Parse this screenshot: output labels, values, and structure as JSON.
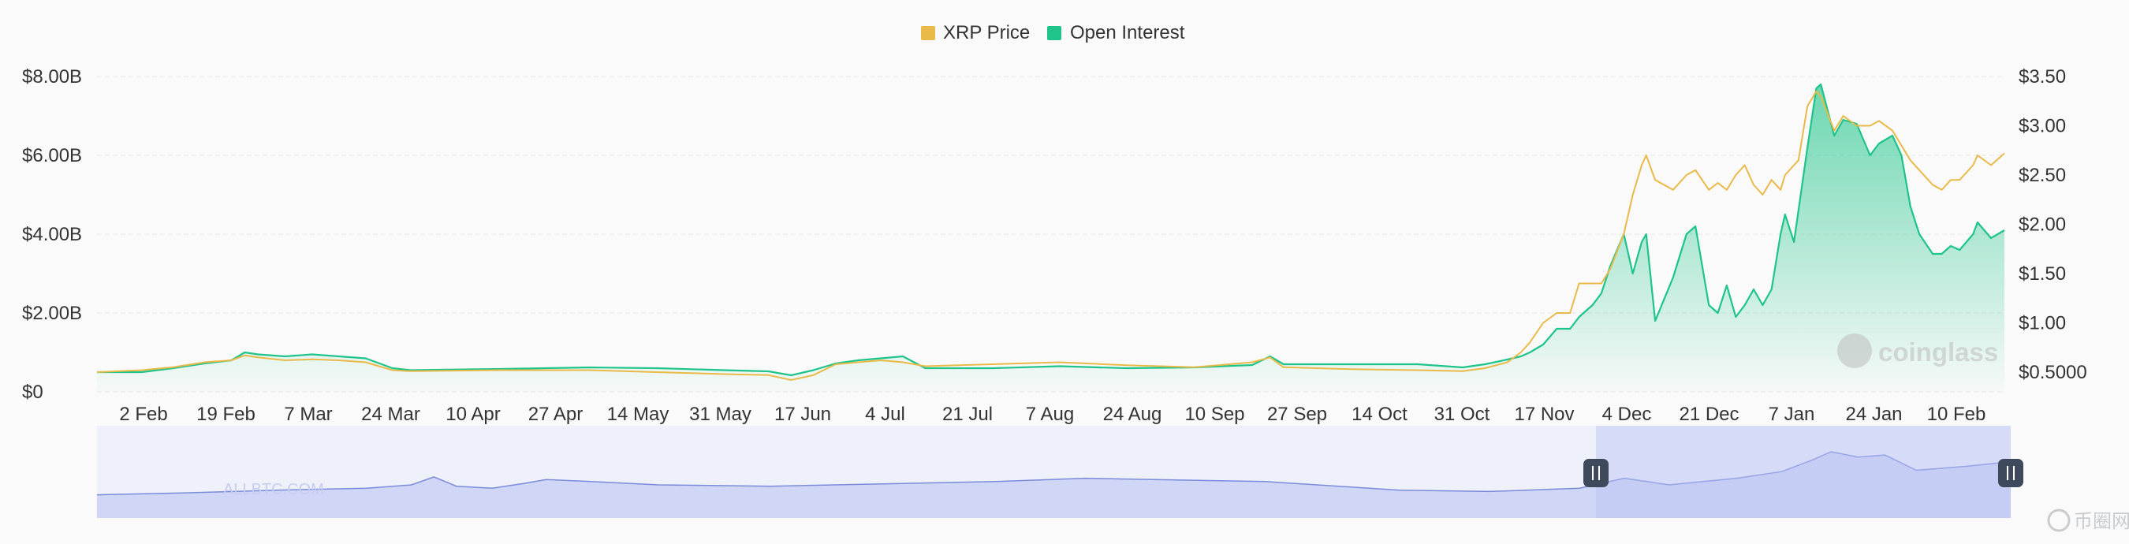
{
  "chart_data": {
    "type": "line",
    "legend": {
      "position": "top-center",
      "items": [
        {
          "name": "XRP Price",
          "color": "#e9b949"
        },
        {
          "name": "Open Interest",
          "color": "#1ec48a"
        }
      ]
    },
    "x_tick_labels": [
      "2 Feb",
      "19 Feb",
      "7 Mar",
      "24 Mar",
      "10 Apr",
      "27 Apr",
      "14 May",
      "31 May",
      "17 Jun",
      "4 Jul",
      "21 Jul",
      "7 Aug",
      "24 Aug",
      "10 Sep",
      "27 Sep",
      "14 Oct",
      "31 Oct",
      "17 Nov",
      "4 Dec",
      "21 Dec",
      "7 Jan",
      "24 Jan",
      "10 Feb"
    ],
    "left_axis": {
      "ticks": [
        "$0",
        "$2.00B",
        "$4.00B",
        "$6.00B",
        "$8.00B"
      ],
      "range": [
        0,
        8.0
      ],
      "unit": "B USD"
    },
    "right_axis": {
      "ticks": [
        "$0.5000",
        "$1.00",
        "$1.50",
        "$2.00",
        "$2.50",
        "$3.00",
        "$3.50"
      ],
      "range": [
        0.3,
        3.5
      ],
      "unit": "USD"
    },
    "grid": true,
    "series": [
      {
        "name": "Open Interest",
        "axis": "left",
        "color": "#1ec48a",
        "fill": "area",
        "points": [
          [
            0,
            0.5
          ],
          [
            10,
            0.5
          ],
          [
            17,
            0.6
          ],
          [
            24,
            0.72
          ],
          [
            30,
            0.8
          ],
          [
            33,
            1.0
          ],
          [
            36,
            0.95
          ],
          [
            42,
            0.9
          ],
          [
            48,
            0.95
          ],
          [
            54,
            0.9
          ],
          [
            60,
            0.85
          ],
          [
            66,
            0.6
          ],
          [
            70,
            0.55
          ],
          [
            90,
            0.58
          ],
          [
            110,
            0.62
          ],
          [
            125,
            0.6
          ],
          [
            140,
            0.55
          ],
          [
            150,
            0.52
          ],
          [
            155,
            0.42
          ],
          [
            160,
            0.55
          ],
          [
            165,
            0.72
          ],
          [
            170,
            0.8
          ],
          [
            175,
            0.85
          ],
          [
            180,
            0.9
          ],
          [
            185,
            0.6
          ],
          [
            200,
            0.6
          ],
          [
            215,
            0.65
          ],
          [
            230,
            0.6
          ],
          [
            245,
            0.62
          ],
          [
            258,
            0.68
          ],
          [
            262,
            0.9
          ],
          [
            265,
            0.7
          ],
          [
            280,
            0.7
          ],
          [
            295,
            0.7
          ],
          [
            305,
            0.62
          ],
          [
            310,
            0.7
          ],
          [
            315,
            0.82
          ],
          [
            318,
            0.9
          ],
          [
            320,
            1.0
          ],
          [
            323,
            1.2
          ],
          [
            326,
            1.6
          ],
          [
            329,
            1.6
          ],
          [
            331,
            1.9
          ],
          [
            334,
            2.2
          ],
          [
            336,
            2.5
          ],
          [
            338,
            3.2
          ],
          [
            341,
            4.0
          ],
          [
            343,
            3.0
          ],
          [
            345,
            3.8
          ],
          [
            346,
            4.0
          ],
          [
            348,
            1.8
          ],
          [
            352,
            2.9
          ],
          [
            355,
            4.0
          ],
          [
            357,
            4.2
          ],
          [
            360,
            2.2
          ],
          [
            362,
            2.0
          ],
          [
            364,
            2.7
          ],
          [
            366,
            1.9
          ],
          [
            368,
            2.2
          ],
          [
            370,
            2.6
          ],
          [
            372,
            2.2
          ],
          [
            374,
            2.6
          ],
          [
            376,
            4.0
          ],
          [
            377,
            4.5
          ],
          [
            379,
            3.8
          ],
          [
            380,
            4.6
          ],
          [
            382,
            6.2
          ],
          [
            384,
            7.7
          ],
          [
            385,
            7.8
          ],
          [
            388,
            6.5
          ],
          [
            390,
            6.9
          ],
          [
            393,
            6.8
          ],
          [
            396,
            6.0
          ],
          [
            398,
            6.3
          ],
          [
            401,
            6.5
          ],
          [
            403,
            6.0
          ],
          [
            405,
            4.7
          ],
          [
            407,
            4.0
          ],
          [
            410,
            3.5
          ],
          [
            412,
            3.5
          ],
          [
            414,
            3.7
          ],
          [
            416,
            3.6
          ],
          [
            419,
            4.0
          ],
          [
            420,
            4.3
          ],
          [
            423,
            3.9
          ],
          [
            426,
            4.1
          ]
        ]
      },
      {
        "name": "XRP Price",
        "axis": "right",
        "color": "#e9b949",
        "fill": "none",
        "points": [
          [
            0,
            0.5
          ],
          [
            10,
            0.52
          ],
          [
            17,
            0.55
          ],
          [
            24,
            0.6
          ],
          [
            30,
            0.62
          ],
          [
            33,
            0.67
          ],
          [
            36,
            0.65
          ],
          [
            42,
            0.62
          ],
          [
            48,
            0.63
          ],
          [
            54,
            0.62
          ],
          [
            60,
            0.6
          ],
          [
            66,
            0.52
          ],
          [
            70,
            0.51
          ],
          [
            90,
            0.52
          ],
          [
            110,
            0.52
          ],
          [
            125,
            0.5
          ],
          [
            140,
            0.48
          ],
          [
            150,
            0.47
          ],
          [
            155,
            0.42
          ],
          [
            160,
            0.47
          ],
          [
            165,
            0.58
          ],
          [
            170,
            0.6
          ],
          [
            175,
            0.62
          ],
          [
            180,
            0.6
          ],
          [
            185,
            0.56
          ],
          [
            200,
            0.58
          ],
          [
            215,
            0.6
          ],
          [
            230,
            0.57
          ],
          [
            245,
            0.55
          ],
          [
            258,
            0.6
          ],
          [
            262,
            0.65
          ],
          [
            265,
            0.55
          ],
          [
            280,
            0.53
          ],
          [
            295,
            0.52
          ],
          [
            305,
            0.51
          ],
          [
            310,
            0.54
          ],
          [
            315,
            0.6
          ],
          [
            318,
            0.7
          ],
          [
            320,
            0.8
          ],
          [
            323,
            1.0
          ],
          [
            326,
            1.1
          ],
          [
            329,
            1.1
          ],
          [
            331,
            1.4
          ],
          [
            334,
            1.4
          ],
          [
            336,
            1.4
          ],
          [
            338,
            1.55
          ],
          [
            341,
            1.9
          ],
          [
            343,
            2.3
          ],
          [
            345,
            2.6
          ],
          [
            346,
            2.7
          ],
          [
            348,
            2.45
          ],
          [
            352,
            2.35
          ],
          [
            355,
            2.5
          ],
          [
            357,
            2.55
          ],
          [
            360,
            2.35
          ],
          [
            362,
            2.42
          ],
          [
            364,
            2.35
          ],
          [
            366,
            2.5
          ],
          [
            368,
            2.6
          ],
          [
            370,
            2.4
          ],
          [
            372,
            2.3
          ],
          [
            374,
            2.45
          ],
          [
            376,
            2.35
          ],
          [
            377,
            2.5
          ],
          [
            379,
            2.6
          ],
          [
            380,
            2.65
          ],
          [
            382,
            3.2
          ],
          [
            384,
            3.35
          ],
          [
            385,
            3.3
          ],
          [
            388,
            2.95
          ],
          [
            390,
            3.1
          ],
          [
            393,
            3.0
          ],
          [
            396,
            3.0
          ],
          [
            398,
            3.05
          ],
          [
            401,
            2.95
          ],
          [
            403,
            2.8
          ],
          [
            405,
            2.65
          ],
          [
            407,
            2.55
          ],
          [
            410,
            2.4
          ],
          [
            412,
            2.35
          ],
          [
            414,
            2.45
          ],
          [
            416,
            2.45
          ],
          [
            419,
            2.6
          ],
          [
            420,
            2.7
          ],
          [
            423,
            2.6
          ],
          [
            426,
            2.72
          ]
        ]
      }
    ],
    "navigator": {
      "selected_range": [
        0.781,
        1.0
      ],
      "series": [
        [
          0,
          0.35
        ],
        [
          20,
          0.38
        ],
        [
          40,
          0.42
        ],
        [
          60,
          0.45
        ],
        [
          70,
          0.5
        ],
        [
          75,
          0.62
        ],
        [
          80,
          0.48
        ],
        [
          88,
          0.45
        ],
        [
          95,
          0.52
        ],
        [
          100,
          0.58
        ],
        [
          110,
          0.55
        ],
        [
          125,
          0.5
        ],
        [
          150,
          0.48
        ],
        [
          200,
          0.55
        ],
        [
          220,
          0.6
        ],
        [
          260,
          0.55
        ],
        [
          290,
          0.42
        ],
        [
          310,
          0.4
        ],
        [
          330,
          0.45
        ],
        [
          340,
          0.6
        ],
        [
          345,
          0.55
        ],
        [
          350,
          0.5
        ],
        [
          365,
          0.6
        ],
        [
          375,
          0.7
        ],
        [
          382,
          0.88
        ],
        [
          386,
          1.0
        ],
        [
          392,
          0.92
        ],
        [
          398,
          0.95
        ],
        [
          405,
          0.72
        ],
        [
          416,
          0.78
        ],
        [
          426,
          0.85
        ]
      ]
    },
    "watermarks": [
      "coinglass",
      "ALLBTC.COM",
      "币圈网"
    ]
  }
}
